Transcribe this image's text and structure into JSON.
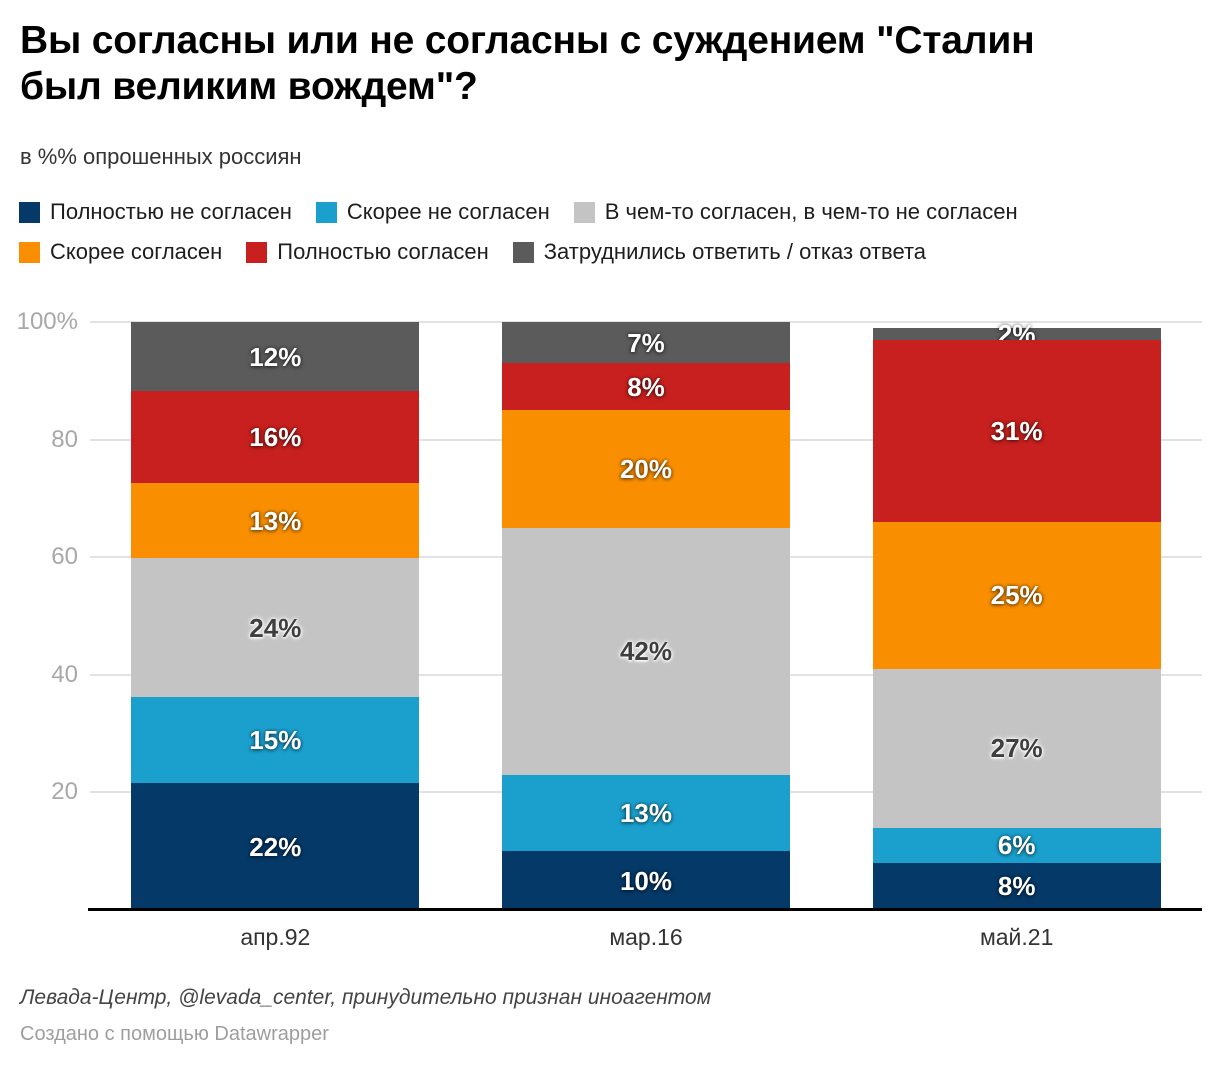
{
  "header": {
    "title": "Вы согласны или не согласны с суждением \"Сталин был великим вождем\"?",
    "title_lines": [
      "Вы согласны или не согласны с суждением \"Сталин",
      "был великим вождем\"?"
    ],
    "subtitle": "в %% опрошенных россиян"
  },
  "chart_data": {
    "type": "bar",
    "stacked": true,
    "categories": [
      "апр.92",
      "мар.16",
      "май.21"
    ],
    "series": [
      {
        "name": "Полностью не согласен",
        "color": "#053968",
        "label_style": "light",
        "values": [
          22,
          10,
          8
        ]
      },
      {
        "name": "Скорее не согласен",
        "color": "#1ba0ce",
        "label_style": "light",
        "values": [
          15,
          13,
          6
        ]
      },
      {
        "name": "В чем-то согласен, в чем-то не согласен",
        "color": "#c4c4c4",
        "label_style": "dark",
        "values": [
          24,
          42,
          27
        ]
      },
      {
        "name": "Скорее согласен",
        "color": "#f98f00",
        "label_style": "light",
        "values": [
          13,
          20,
          25
        ]
      },
      {
        "name": "Полностью согласен",
        "color": "#c8201e",
        "label_style": "light",
        "values": [
          16,
          8,
          31
        ]
      },
      {
        "name": "Затруднились ответить / отказ ответа",
        "color": "#5b5b5b",
        "label_style": "light",
        "values": [
          12,
          7,
          2
        ]
      }
    ],
    "value_suffix": "%",
    "ylim": [
      0,
      100
    ],
    "yticks": [
      {
        "value": 100,
        "label": "100%"
      },
      {
        "value": 80,
        "label": "80"
      },
      {
        "value": 60,
        "label": "60"
      },
      {
        "value": 40,
        "label": "40"
      },
      {
        "value": 20,
        "label": "20"
      }
    ],
    "grid": true,
    "gridline_color": "#e2e2e2",
    "legend_position": "top",
    "legend_rows": [
      [
        0,
        1,
        2
      ],
      [
        3,
        4,
        5
      ]
    ]
  },
  "footer": {
    "source": "Левада-Центр, @levada_center, принудительно признан иноагентом",
    "attribution": "Создано с помощью Datawrapper"
  }
}
